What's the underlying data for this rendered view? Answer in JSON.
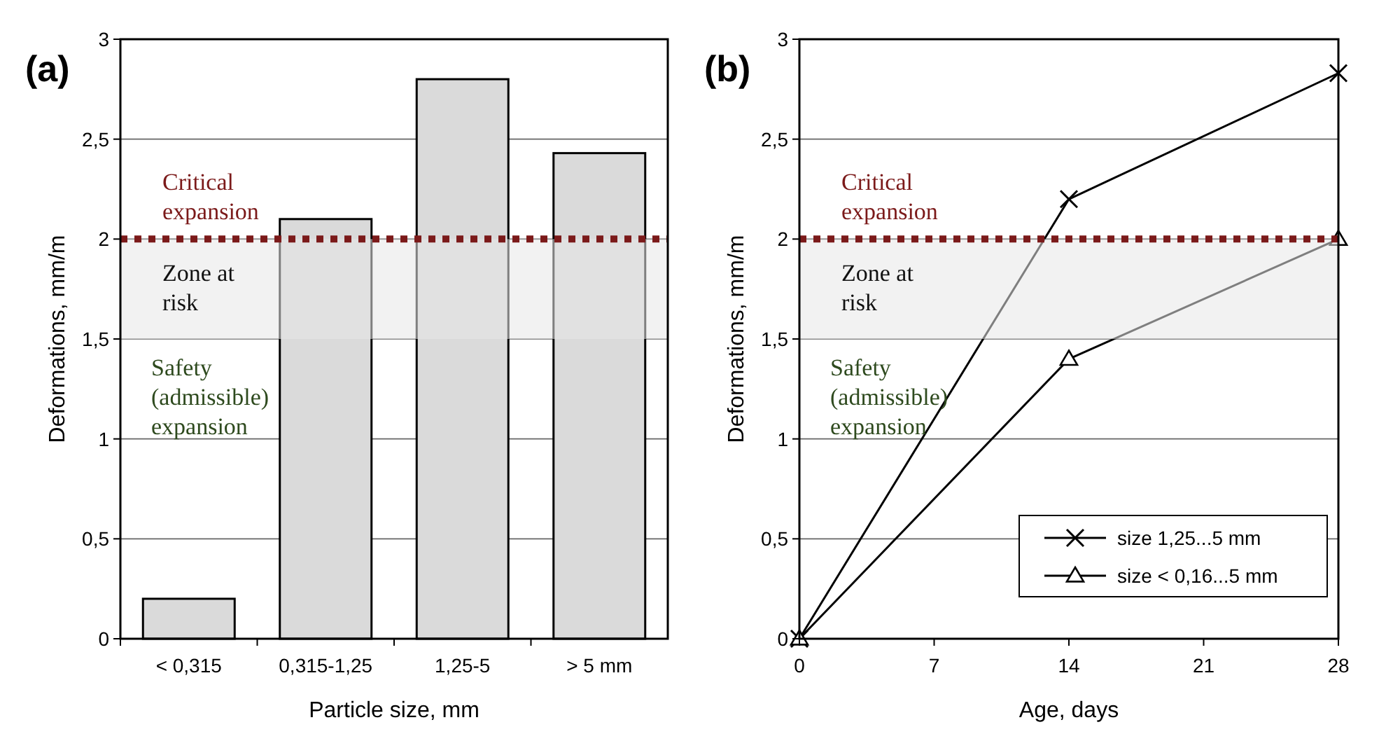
{
  "chart_data": [
    {
      "type": "bar",
      "title": "(a)",
      "xlabel": "Particle size, mm",
      "ylabel": "Deformations, mm/m",
      "categories": [
        "< 0,315",
        "0,315-1,25",
        "1,25-5",
        "> 5 mm"
      ],
      "values": [
        0.2,
        2.1,
        2.8,
        2.43
      ],
      "color": "#dadada",
      "ylim": [
        0,
        3
      ],
      "yticks": [
        0,
        {
          "value": 0.5,
          "label": "0,5"
        },
        1,
        {
          "value": 1.5,
          "label": "1,5"
        },
        2,
        {
          "value": 2.5,
          "label": "2,5"
        },
        3
      ],
      "grid": "y",
      "ref_lines": [
        {
          "axis": "y",
          "value": 2,
          "label": "Critical expansion",
          "color": "#7b1a1a",
          "line_style": "dotted"
        }
      ],
      "bands": [
        {
          "axis": "y",
          "from": 1.5,
          "to": 2,
          "label": "Zone at risk",
          "color": "#e8e8e8"
        }
      ],
      "annotations": [
        "Safety (admissible) expansion"
      ]
    },
    {
      "type": "line",
      "title": "(b)",
      "xlabel": "Age, days",
      "ylabel": "Deformations, mm/m",
      "x": [
        0,
        14,
        28
      ],
      "series": [
        {
          "name": "size 1,25...5 mm",
          "color": "#000000",
          "values": [
            0,
            2.2,
            2.83
          ],
          "marker": "cross"
        },
        {
          "name": "size < 0,16...5 mm",
          "color": "#000000",
          "values": [
            0,
            1.4,
            2.0
          ],
          "marker": "triangle"
        }
      ],
      "xlim": [
        0,
        28
      ],
      "xticks": [
        0,
        7,
        14,
        21,
        28
      ],
      "ylim": [
        0,
        3
      ],
      "yticks": [
        0,
        {
          "value": 0.5,
          "label": "0,5"
        },
        1,
        {
          "value": 1.5,
          "label": "1,5"
        },
        2,
        {
          "value": 2.5,
          "label": "2,5"
        },
        3
      ],
      "grid": "y",
      "legend": "bottom right",
      "line_style": "solid",
      "ref_lines": [
        {
          "axis": "y",
          "value": 2,
          "label": "Critical expansion",
          "color": "#7b1a1a",
          "line_style": "dotted"
        }
      ],
      "bands": [
        {
          "axis": "y",
          "from": 1.5,
          "to": 2,
          "label": "Zone at risk",
          "color": "#e8e8e8"
        }
      ],
      "annotations": [
        "Safety (admissible) expansion"
      ]
    }
  ]
}
